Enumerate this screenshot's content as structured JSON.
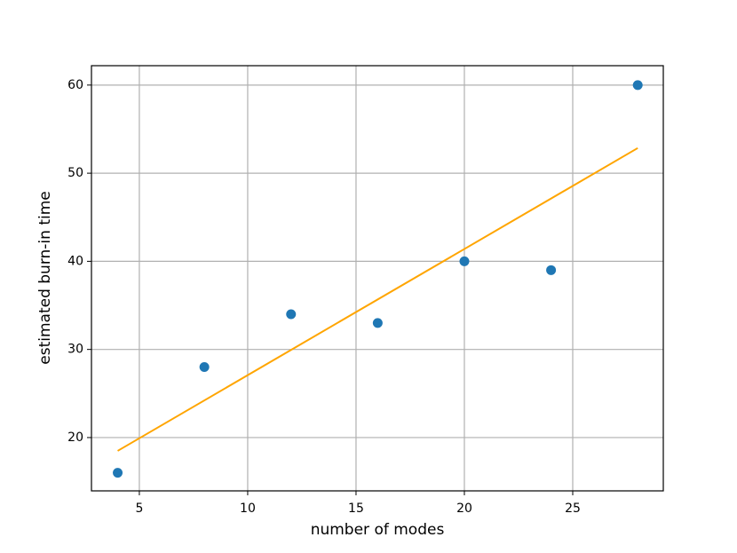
{
  "chart_data": {
    "type": "scatter",
    "xlabel": "number of modes",
    "ylabel": "estimated burn-in time",
    "series": [
      {
        "type": "scatter",
        "color": "#1f77b4",
        "x": [
          4,
          8,
          12,
          16,
          20,
          24,
          28
        ],
        "values": [
          16,
          28,
          34,
          33,
          40,
          39,
          60
        ]
      },
      {
        "type": "line",
        "color": "#ffa500",
        "x": [
          4,
          28
        ],
        "values": [
          18.49,
          52.85
        ]
      }
    ],
    "xlim": [
      2.79,
      29.18
    ],
    "ylim": [
      13.95,
      62.2
    ],
    "xticks": [
      5,
      10,
      15,
      20,
      25
    ],
    "yticks": [
      20,
      30,
      40,
      50,
      60
    ],
    "grid": true
  }
}
